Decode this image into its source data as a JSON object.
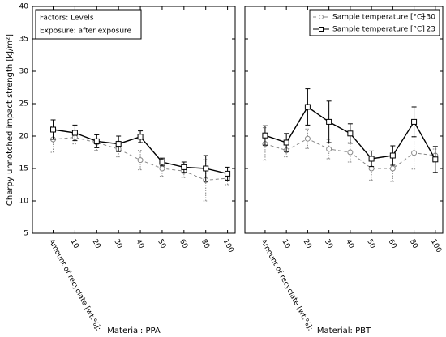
{
  "chart_data": [
    {
      "type": "line",
      "title": "Material: PPA",
      "ylabel": "Charpy unnotched impact strength [kJ/m²]",
      "xlabel": "Amount of recyclate [wt.%]:",
      "annotations": [
        "Factors: Levels",
        "Exposure: after exposure"
      ],
      "categories": [
        null,
        "10",
        "20",
        "30",
        "40",
        "50",
        "60",
        "80",
        "100"
      ],
      "ylim": [
        5,
        40
      ],
      "yticks": [
        5,
        10,
        15,
        20,
        25,
        30,
        35,
        40
      ],
      "series": [
        {
          "name": "Sample temperature [°C]",
          "temperature": "−30",
          "color": "#888888",
          "linestyle": "dashed",
          "marker": "circle",
          "values": [
            19.5,
            19.8,
            19.0,
            18.0,
            16.3,
            15.0,
            14.6,
            13.2,
            13.5
          ],
          "errors": [
            2.0,
            1.0,
            1.2,
            1.2,
            1.5,
            1.2,
            1.0,
            3.2,
            1.0
          ]
        },
        {
          "name": "Sample temperature [°C]",
          "temperature": "23",
          "color": "#000000",
          "linestyle": "solid",
          "marker": "square",
          "values": [
            21.0,
            20.5,
            19.2,
            18.8,
            19.9,
            16.0,
            15.2,
            15.0,
            14.2
          ],
          "errors": [
            1.5,
            1.2,
            1.0,
            1.2,
            0.9,
            0.6,
            0.8,
            2.0,
            1.0
          ]
        }
      ]
    },
    {
      "type": "line",
      "title": "Material: PBT",
      "xlabel": "Amount of recyclate [wt.%]:",
      "legend": "upper right",
      "categories": [
        null,
        "10",
        "20",
        "30",
        "40",
        "50",
        "60",
        "80",
        "100"
      ],
      "ylim": [
        5,
        40
      ],
      "yticks": [
        5,
        10,
        15,
        20,
        25,
        30,
        35,
        40
      ],
      "series": [
        {
          "name": "Sample temperature [°C]",
          "temperature": "−30",
          "color": "#888888",
          "linestyle": "dashed",
          "marker": "circle",
          "values": [
            18.8,
            17.8,
            19.6,
            18.0,
            17.5,
            15.0,
            15.0,
            17.4,
            17.0
          ],
          "errors": [
            2.5,
            1.0,
            1.5,
            1.5,
            1.5,
            1.8,
            2.0,
            2.5,
            1.0
          ]
        },
        {
          "name": "Sample temperature [°C]",
          "temperature": "23",
          "color": "#000000",
          "linestyle": "solid",
          "marker": "square",
          "values": [
            20.1,
            19.0,
            24.5,
            22.2,
            20.4,
            16.5,
            17.0,
            22.2,
            16.4
          ],
          "errors": [
            1.5,
            1.4,
            2.8,
            3.2,
            1.5,
            1.2,
            1.5,
            2.3,
            2.0
          ]
        }
      ]
    }
  ]
}
